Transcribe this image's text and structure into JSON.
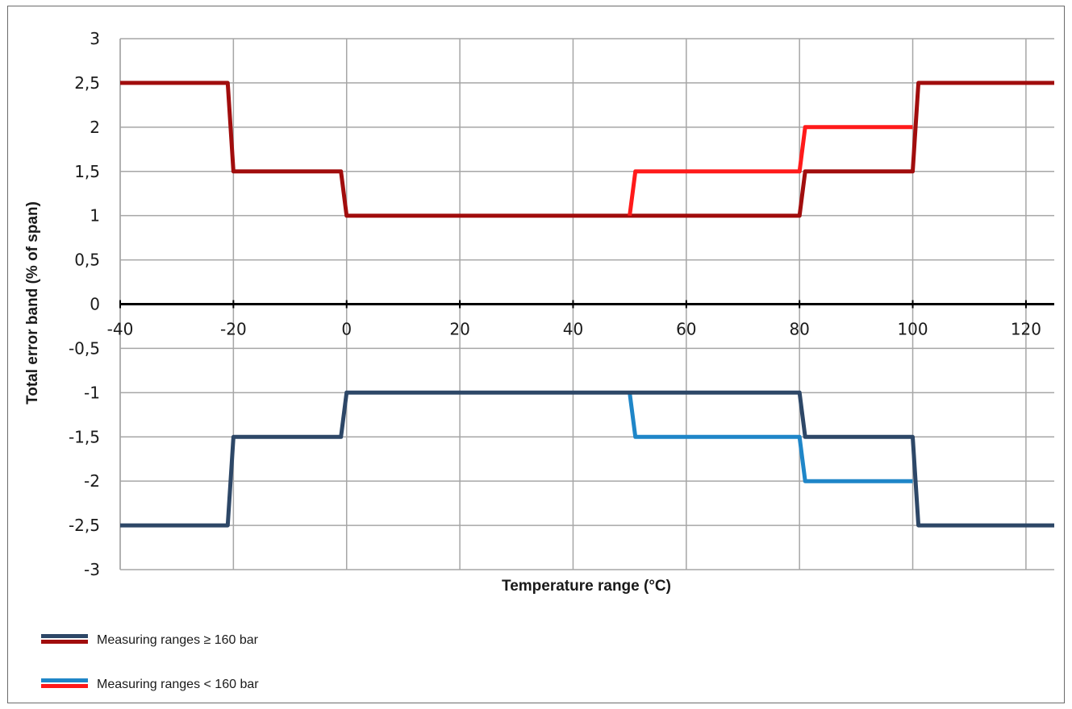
{
  "chart_data": {
    "type": "line",
    "xlabel": "Temperature range (°C)",
    "ylabel": "Total error band (% of span)",
    "xlim": [
      -40,
      125
    ],
    "ylim": [
      -3,
      3
    ],
    "x_ticks": [
      -40,
      -20,
      0,
      20,
      40,
      60,
      80,
      100,
      120
    ],
    "y_ticks": [
      3,
      2.5,
      2,
      1.5,
      1,
      0.5,
      0,
      -0.5,
      -1,
      -1.5,
      -2,
      -2.5,
      -3
    ],
    "x_tick_labels": [
      "-40",
      "-20",
      "0",
      "20",
      "40",
      "60",
      "80",
      "100",
      "120"
    ],
    "y_tick_labels": [
      "3",
      "2,5",
      "2",
      "1,5",
      "1",
      "0,5",
      "0",
      "-0,5",
      "-1",
      "-1,5",
      "-2",
      "-2,5",
      "-3"
    ],
    "grid": true,
    "series": [
      {
        "legend_group": "ge160",
        "color": "#a10d0d",
        "x": [
          -40,
          -21,
          -20,
          -1,
          0,
          80,
          81,
          100,
          101,
          125
        ],
        "y": [
          2.5,
          2.5,
          1.5,
          1.5,
          1,
          1,
          1.5,
          1.5,
          2.5,
          2.5
        ]
      },
      {
        "legend_group": "lt160",
        "color": "#ff1a1a",
        "x": [
          50,
          51,
          80,
          81,
          100
        ],
        "y": [
          1,
          1.5,
          1.5,
          2,
          2
        ]
      },
      {
        "legend_group": "lt160",
        "color": "#1f86c8",
        "x": [
          50,
          51,
          80,
          81,
          100
        ],
        "y": [
          -1,
          -1.5,
          -1.5,
          -2,
          -2
        ]
      },
      {
        "legend_group": "ge160",
        "color": "#2d4767",
        "x": [
          -40,
          -21,
          -20,
          -1,
          0,
          80,
          81,
          100,
          101,
          125
        ],
        "y": [
          -2.5,
          -2.5,
          -1.5,
          -1.5,
          -1,
          -1,
          -1.5,
          -1.5,
          -2.5,
          -2.5
        ]
      }
    ],
    "legend": {
      "position": "bottom-left",
      "entries": [
        {
          "label": "Measuring ranges ≥ 160 bar",
          "colors": [
            "#2d4767",
            "#a10d0d"
          ]
        },
        {
          "label": "Measuring ranges < 160 bar",
          "colors": [
            "#1f86c8",
            "#ff1a1a"
          ]
        }
      ]
    },
    "gridline_color": "#a6a6a6",
    "zero_axis_color": "#000000"
  }
}
